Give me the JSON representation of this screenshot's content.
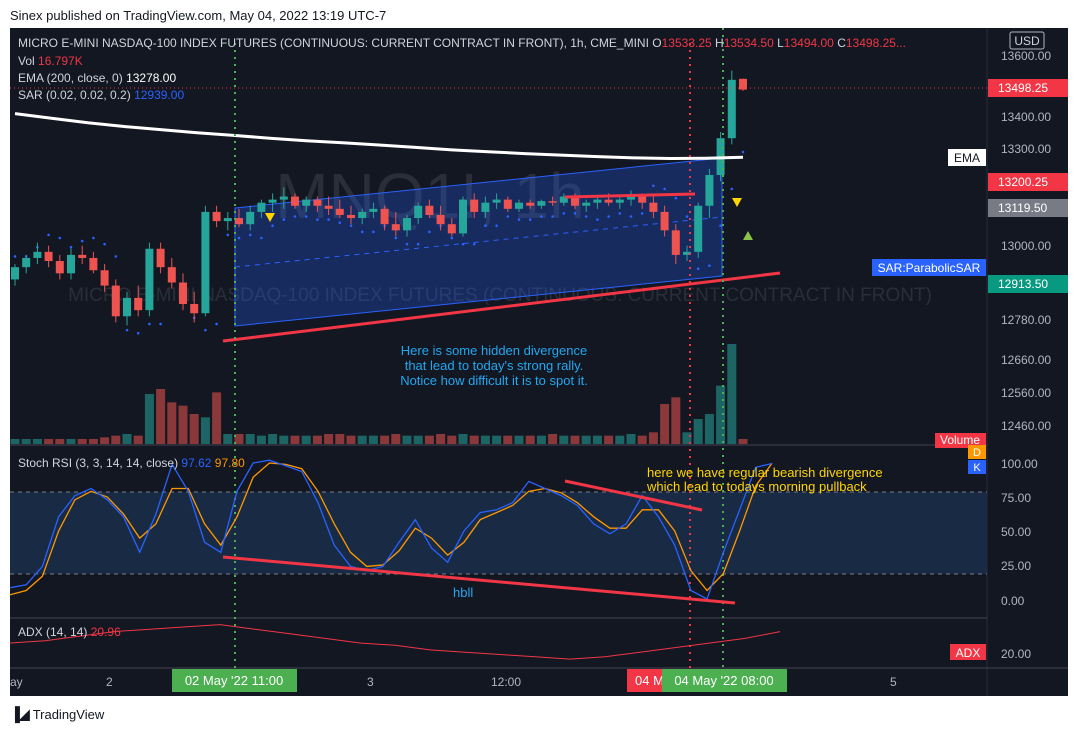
{
  "header": {
    "text": "Sinex published on TradingView.com, May 04, 2022 13:19 UTC-7"
  },
  "footer": {
    "brand": "TradingView",
    "logo": "tradingview-logo-icon"
  },
  "legend": {
    "symbol": "MICRO E-MINI NASDAQ-100 INDEX FUTURES (CONTINUOUS: CURRENT CONTRACT IN FRONT), 1h, CME_MINI",
    "open_label": "O",
    "open": "13533.25",
    "high_label": "H",
    "high": "13534.50",
    "low_label": "L",
    "low": "13494.00",
    "close_label": "C",
    "close": "13498.25...",
    "vol_label": "Vol",
    "vol": "16.797K",
    "ema_label": "EMA (200, close, 0)",
    "ema": "13278.00",
    "sar_label": "SAR (0.02, 0.02, 0.2)",
    "sar": "12939.00",
    "stoch_label": "Stoch RSI (3, 3, 14, 14, close)",
    "stoch_k": "97.62",
    "stoch_d": "97.80",
    "adx_label": "ADX (14, 14)",
    "adx": "20.96"
  },
  "watermark": "MNQ1!, 1h",
  "watermark_sub": "MICRO E-MINI NASDAQ-100 INDEX FUTURES (CONTINUOUS: CURRENT CONTRACT IN FRONT)",
  "currency": "USD",
  "price_axis": {
    "ticks": [
      "13600.00",
      "13400.00",
      "13300.00",
      "13000.00",
      "12780.00",
      "12660.00",
      "12560.00",
      "12460.00"
    ]
  },
  "price_labels": {
    "last": "13498.25",
    "ema_tag": "EMA",
    "red": "13200.25",
    "grey": "13119.50",
    "sar_tag": "SAR:ParabolicSAR",
    "sar_value": "12913.50",
    "volume_tag": "Volume"
  },
  "stoch_axis": {
    "ticks": [
      "100.00",
      "75.00",
      "50.00",
      "25.00",
      "0.00"
    ],
    "d_tag": "D",
    "k_tag": "K"
  },
  "adx_axis": {
    "ticks": [
      "20.00"
    ],
    "tag": "ADX"
  },
  "time_axis": {
    "ticks": [
      "ay",
      "2",
      "3",
      "12:00",
      "5"
    ],
    "marker_left": "02 May '22   11:00",
    "marker_red": "04 M",
    "marker_right": "04 May '22   08:00"
  },
  "annotations": {
    "hidden_1": "Here is some hidden divergence",
    "hidden_2": "that lead to today's strong rally.",
    "hidden_3": "Notice how difficult it is to spot it.",
    "bear_1": "here we have regular bearish divergence",
    "bear_2": "which lead to todays morning pullback",
    "hbll": "hbll"
  },
  "colors": {
    "up": "#26a69a",
    "down": "#ef5350",
    "bg": "#131722",
    "ema": "#ffffff",
    "sar": "#2962ff",
    "stoch_k": "#2962ff",
    "stoch_d": "#ff9800",
    "adx": "#f23645",
    "trend": "#f23645",
    "green_marker": "#4caf50"
  },
  "chart_data": [
    {
      "type": "candlestick",
      "title": "MICRO E-MINI NASDAQ-100 INDEX FUTURES (CONTINUOUS: CURRENT CONTRACT IN FRONT), 1h, CME_MINI",
      "ylim": [
        12380,
        13650
      ],
      "candles": [
        [
          12880,
          12930,
          12860,
          12920
        ],
        [
          12920,
          12960,
          12900,
          12950
        ],
        [
          12950,
          13000,
          12930,
          12970
        ],
        [
          12970,
          12990,
          12920,
          12940
        ],
        [
          12940,
          12960,
          12880,
          12900
        ],
        [
          12900,
          12980,
          12880,
          12960
        ],
        [
          12960,
          12990,
          12930,
          12950
        ],
        [
          12950,
          12970,
          12900,
          12910
        ],
        [
          12910,
          12930,
          12840,
          12860
        ],
        [
          12860,
          12880,
          12740,
          12760
        ],
        [
          12760,
          12840,
          12730,
          12820
        ],
        [
          12820,
          12860,
          12760,
          12780
        ],
        [
          12780,
          13000,
          12760,
          12980
        ],
        [
          12980,
          13000,
          12900,
          12920
        ],
        [
          12920,
          12950,
          12850,
          12870
        ],
        [
          12870,
          12900,
          12780,
          12800
        ],
        [
          12800,
          12840,
          12740,
          12770
        ],
        [
          12770,
          13120,
          12760,
          13100
        ],
        [
          13100,
          13120,
          13050,
          13070
        ],
        [
          13070,
          13100,
          13040,
          13080
        ],
        [
          13080,
          13110,
          13050,
          13060
        ],
        [
          13060,
          13120,
          13040,
          13100
        ],
        [
          13100,
          13140,
          13080,
          13130
        ],
        [
          13130,
          13160,
          13100,
          13140
        ],
        [
          13140,
          13180,
          13110,
          13150
        ],
        [
          13150,
          13160,
          13110,
          13120
        ],
        [
          13120,
          13150,
          13100,
          13140
        ],
        [
          13140,
          13150,
          13100,
          13120
        ],
        [
          13120,
          13150,
          13090,
          13110
        ],
        [
          13110,
          13140,
          13080,
          13090
        ],
        [
          13090,
          13120,
          13060,
          13080
        ],
        [
          13080,
          13110,
          13060,
          13100
        ],
        [
          13100,
          13130,
          13080,
          13110
        ],
        [
          13110,
          13120,
          13040,
          13060
        ],
        [
          13060,
          13100,
          13020,
          13040
        ],
        [
          13040,
          13090,
          13020,
          13080
        ],
        [
          13080,
          13130,
          13060,
          13120
        ],
        [
          13120,
          13140,
          13080,
          13090
        ],
        [
          13090,
          13120,
          13040,
          13060
        ],
        [
          13060,
          13080,
          13020,
          13030
        ],
        [
          13030,
          13150,
          13020,
          13140
        ],
        [
          13140,
          13160,
          13080,
          13100
        ],
        [
          13100,
          13150,
          13080,
          13130
        ],
        [
          13130,
          13160,
          13110,
          13140
        ],
        [
          13140,
          13150,
          13100,
          13110
        ],
        [
          13110,
          13140,
          13100,
          13130
        ],
        [
          13130,
          13140,
          13110,
          13120
        ],
        [
          13120,
          13140,
          13110,
          13135
        ],
        [
          13135,
          13150,
          13120,
          13130
        ],
        [
          13130,
          13160,
          13120,
          13150
        ],
        [
          13150,
          13160,
          13110,
          13120
        ],
        [
          13120,
          13140,
          13100,
          13130
        ],
        [
          13130,
          13150,
          13110,
          13140
        ],
        [
          13140,
          13160,
          13120,
          13130
        ],
        [
          13130,
          13150,
          13110,
          13140
        ],
        [
          13140,
          13170,
          13120,
          13150
        ],
        [
          13150,
          13160,
          13110,
          13130
        ],
        [
          13130,
          13150,
          13080,
          13100
        ],
        [
          13100,
          13120,
          13020,
          13040
        ],
        [
          13040,
          13060,
          12930,
          12960
        ],
        [
          12960,
          12990,
          12940,
          12970
        ],
        [
          12970,
          13130,
          12950,
          13120
        ],
        [
          13120,
          13240,
          13080,
          13220
        ],
        [
          13220,
          13360,
          13200,
          13340
        ],
        [
          13340,
          13560,
          13320,
          13530
        ],
        [
          13533.25,
          13534.5,
          13494,
          13498.25
        ]
      ],
      "ema": [
        13420,
        13405,
        13390,
        13378,
        13368,
        13358,
        13349,
        13340,
        13332,
        13325,
        13318,
        13310,
        13302,
        13296,
        13290,
        13285,
        13280,
        13276,
        13274,
        13275,
        13278
      ],
      "volume": [
        3,
        3,
        3,
        3,
        3,
        3,
        3,
        3,
        4,
        5,
        6,
        5,
        30,
        33,
        25,
        23,
        18,
        16,
        31,
        6,
        6,
        6,
        5,
        6,
        5,
        5,
        5,
        5,
        6,
        6,
        5,
        5,
        5,
        5,
        6,
        5,
        5,
        5,
        6,
        5,
        6,
        5,
        5,
        5,
        5,
        5,
        5,
        5,
        6,
        5,
        5,
        5,
        5,
        5,
        5,
        6,
        5,
        7,
        24,
        28,
        7,
        15,
        18,
        35,
        60,
        3
      ]
    },
    {
      "type": "line",
      "title": "Stoch RSI (3, 3, 14, 14, close)",
      "ylim": [
        -10,
        110
      ],
      "series": [
        {
          "name": "K",
          "values": [
            10,
            12,
            25,
            60,
            75,
            80,
            72,
            60,
            35,
            62,
            97,
            78,
            42,
            35,
            78,
            98,
            100,
            96,
            92,
            70,
            40,
            25,
            22,
            25,
            42,
            58,
            38,
            28,
            50,
            63,
            65,
            70,
            85,
            80,
            75,
            68,
            55,
            48,
            55,
            75,
            60,
            40,
            8,
            2,
            35,
            65,
            95,
            97.62
          ]
        },
        {
          "name": "D",
          "values": [
            5,
            8,
            18,
            50,
            72,
            78,
            74,
            62,
            45,
            55,
            80,
            80,
            55,
            40,
            60,
            88,
            98,
            97,
            94,
            78,
            55,
            35,
            25,
            26,
            36,
            52,
            45,
            33,
            42,
            58,
            63,
            68,
            78,
            80,
            77,
            70,
            60,
            52,
            52,
            65,
            65,
            50,
            22,
            8,
            20,
            50,
            82,
            97.8
          ]
        }
      ]
    },
    {
      "type": "line",
      "title": "ADX (14, 14)",
      "series": [
        {
          "name": "ADX",
          "values": [
            16,
            17,
            19,
            21,
            22,
            23,
            24,
            22,
            20,
            18,
            16,
            15,
            13,
            12,
            11,
            10,
            9,
            10,
            12,
            14,
            16,
            18,
            20.96
          ]
        }
      ]
    }
  ]
}
